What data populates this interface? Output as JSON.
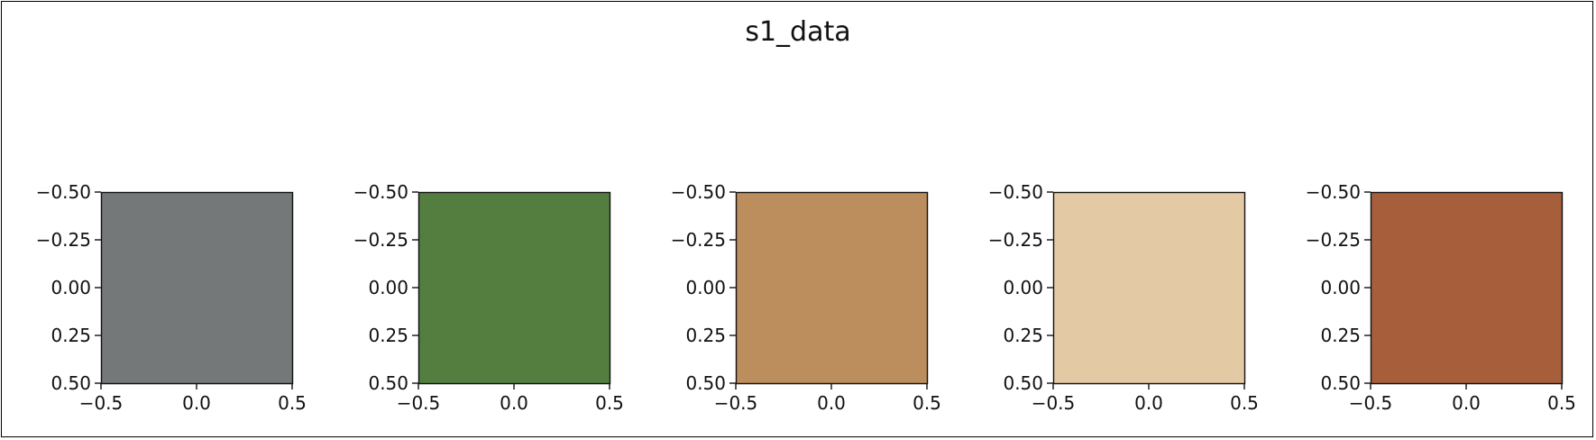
{
  "figure": {
    "title": "s1_data"
  },
  "chart_data": [
    {
      "type": "heatmap",
      "title": "",
      "color": "#757878",
      "x": [
        -0.5,
        0.0,
        0.5
      ],
      "y": [
        -0.5,
        -0.25,
        0.0,
        0.25,
        0.5
      ],
      "xticks": [
        "−0.5",
        "0.0",
        "0.5"
      ],
      "yticks": [
        "−0.50",
        "−0.25",
        "0.00",
        "0.25",
        "0.50"
      ],
      "xlim": [
        -0.5,
        0.5
      ],
      "ylim": [
        0.5,
        -0.5
      ],
      "grid": false
    },
    {
      "type": "heatmap",
      "title": "",
      "color": "#537e3f",
      "x": [
        -0.5,
        0.0,
        0.5
      ],
      "y": [
        -0.5,
        -0.25,
        0.0,
        0.25,
        0.5
      ],
      "xticks": [
        "−0.5",
        "0.0",
        "0.5"
      ],
      "yticks": [
        "−0.50",
        "−0.25",
        "0.00",
        "0.25",
        "0.50"
      ],
      "xlim": [
        -0.5,
        0.5
      ],
      "ylim": [
        0.5,
        -0.5
      ],
      "grid": false
    },
    {
      "type": "heatmap",
      "title": "",
      "color": "#bc8e5d",
      "x": [
        -0.5,
        0.0,
        0.5
      ],
      "y": [
        -0.5,
        -0.25,
        0.0,
        0.25,
        0.5
      ],
      "xticks": [
        "−0.5",
        "0.0",
        "0.5"
      ],
      "yticks": [
        "−0.50",
        "−0.25",
        "0.00",
        "0.25",
        "0.50"
      ],
      "xlim": [
        -0.5,
        0.5
      ],
      "ylim": [
        0.5,
        -0.5
      ],
      "grid": false
    },
    {
      "type": "heatmap",
      "title": "",
      "color": "#e4c9a5",
      "x": [
        -0.5,
        0.0,
        0.5
      ],
      "y": [
        -0.5,
        -0.25,
        0.0,
        0.25,
        0.5
      ],
      "xticks": [
        "−0.5",
        "0.0",
        "0.5"
      ],
      "yticks": [
        "−0.50",
        "−0.25",
        "0.00",
        "0.25",
        "0.50"
      ],
      "xlim": [
        -0.5,
        0.5
      ],
      "ylim": [
        0.5,
        -0.5
      ],
      "grid": false
    },
    {
      "type": "heatmap",
      "title": "",
      "color": "#a65e3b",
      "x": [
        -0.5,
        0.0,
        0.5
      ],
      "y": [
        -0.5,
        -0.25,
        0.0,
        0.25,
        0.5
      ],
      "xticks": [
        "−0.5",
        "0.0",
        "0.5"
      ],
      "yticks": [
        "−0.50",
        "−0.25",
        "0.00",
        "0.25",
        "0.50"
      ],
      "xlim": [
        -0.5,
        0.5
      ],
      "ylim": [
        0.5,
        -0.5
      ],
      "grid": false
    }
  ]
}
